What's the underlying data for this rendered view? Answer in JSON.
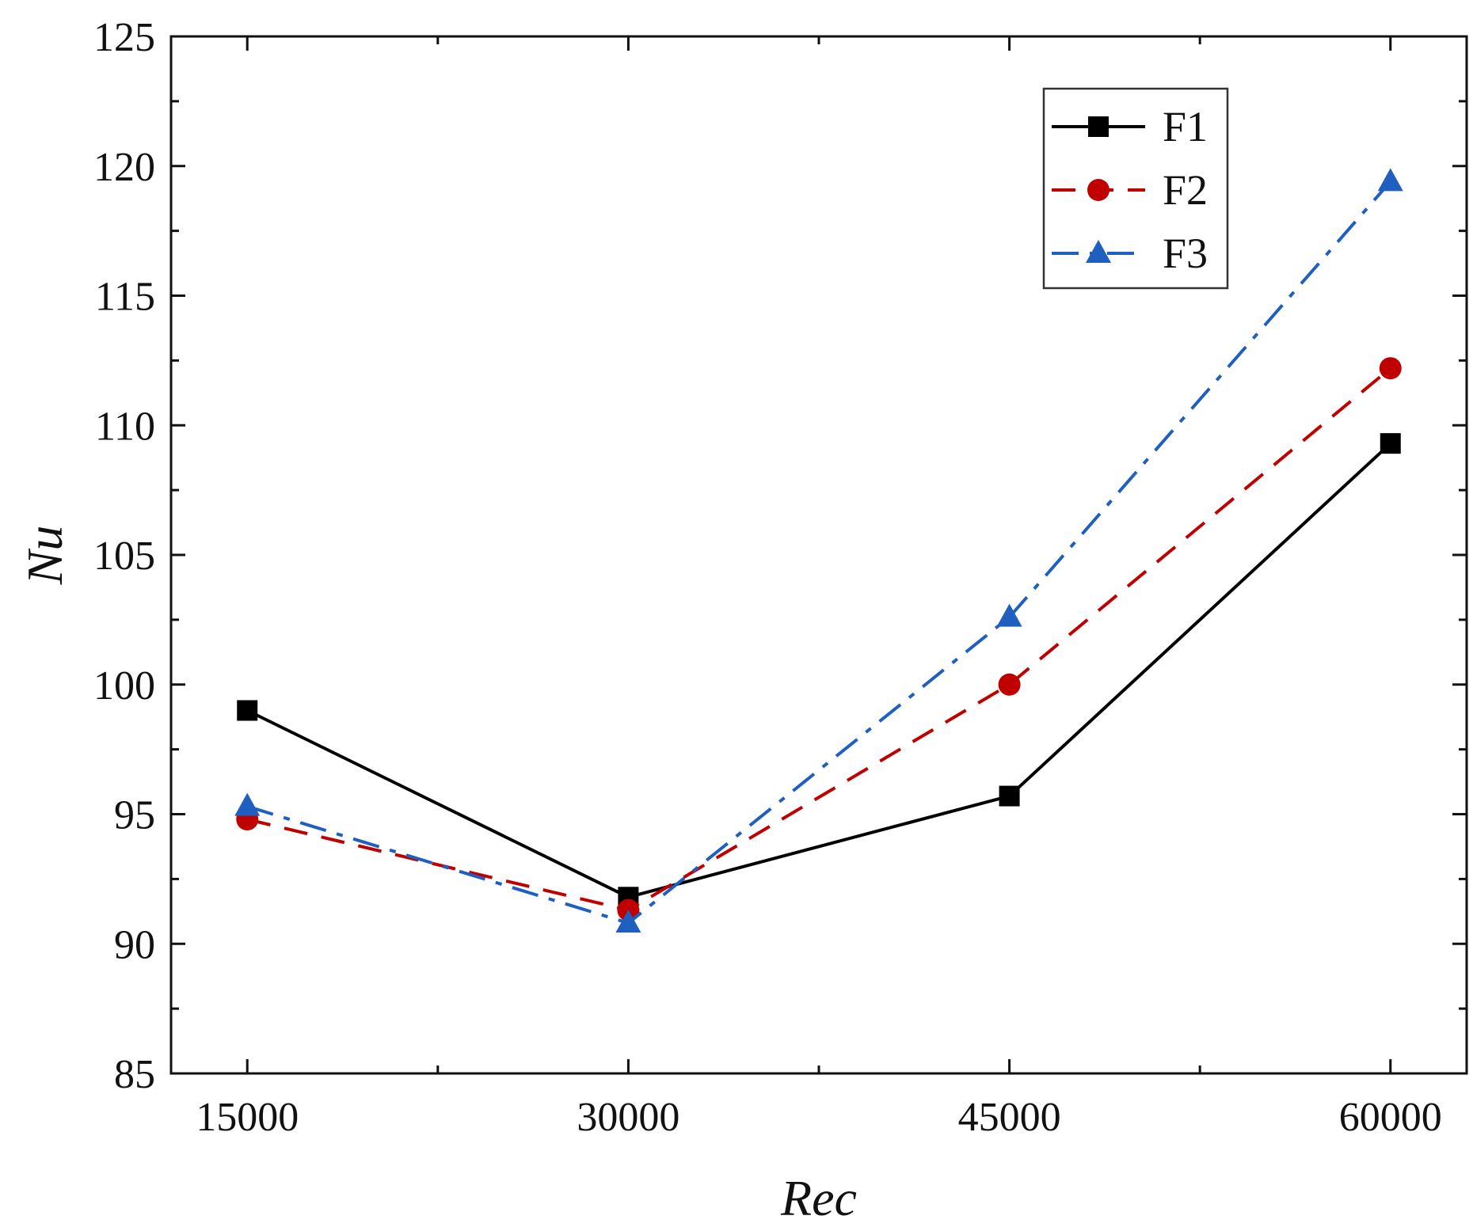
{
  "chart_data": {
    "type": "line",
    "title": "",
    "xlabel": "Rec",
    "ylabel": "Nu",
    "x": [
      15000,
      30000,
      45000,
      60000
    ],
    "x_ticks": [
      "15000",
      "30000",
      "45000",
      "60000"
    ],
    "xlim": [
      12000,
      63000
    ],
    "ylim": [
      85,
      125
    ],
    "y_ticks": [
      "85",
      "90",
      "95",
      "100",
      "105",
      "110",
      "115",
      "120",
      "125"
    ],
    "grid": false,
    "legend_position": "top-right",
    "series": [
      {
        "name": "F1",
        "color": "#000000",
        "marker": "square",
        "line": "solid",
        "values": [
          99.0,
          91.8,
          95.7,
          109.3
        ]
      },
      {
        "name": "F2",
        "color": "#c00000",
        "marker": "circle",
        "line": "dashed",
        "values": [
          94.8,
          91.3,
          100.0,
          112.2
        ]
      },
      {
        "name": "F3",
        "color": "#1f5fbf",
        "marker": "triangle",
        "line": "dashdot",
        "values": [
          95.3,
          90.8,
          102.6,
          119.4
        ]
      }
    ]
  }
}
